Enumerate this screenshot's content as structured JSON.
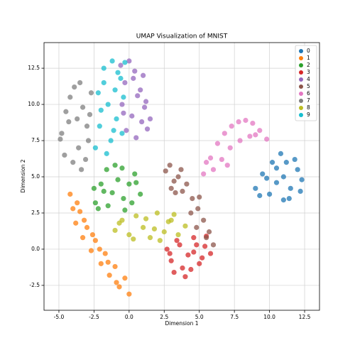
{
  "chart_data": {
    "type": "scatter",
    "title": "UMAP Visualization of MNIST",
    "x_label": "Dimension 1",
    "y_label": "Dimension 2",
    "xlim": [
      -6.06,
      13.56
    ],
    "ylim": [
      -4.22,
      14.27
    ],
    "grid": true,
    "legend_position": "upper right",
    "xticks": [
      {
        "value": -5,
        "label": "-5.0"
      },
      -2.5,
      {
        "value": 0,
        "label": "0.0"
      },
      2.5,
      {
        "value": 5,
        "label": "5.0"
      },
      7.5,
      {
        "value": 10,
        "label": "10.0"
      },
      12.5
    ],
    "yticks": [
      -2.5,
      {
        "value": 0,
        "label": "0.0"
      },
      2.5,
      {
        "value": 5,
        "label": "5.0"
      },
      7.5,
      {
        "value": 10,
        "label": "10.0"
      },
      12.5
    ],
    "series": [
      {
        "name": "0",
        "color": "#1f77b4",
        "x": [
          9.0,
          9.5,
          10,
          10.5,
          11,
          11.5,
          12,
          12.3,
          10.2,
          10.8,
          11.4,
          9.8,
          11,
          11.8,
          10.5,
          9.3,
          11.2,
          12.2
        ],
        "y": [
          4.2,
          5.2,
          3.8,
          4.6,
          5.0,
          4.2,
          5.5,
          4.8,
          6.0,
          6.6,
          3.5,
          4.9,
          3.4,
          6.2,
          5.6,
          3.7,
          6.0,
          4.0
        ]
      },
      {
        "name": "1",
        "color": "#ff7f0e",
        "x": [
          -4.2,
          -4.0,
          -3.8,
          -3.5,
          -3.3,
          -3.0,
          -2.7,
          -2.4,
          -2.0,
          -1.7,
          -1.4,
          -1.0,
          -0.7,
          -0.3,
          0.0,
          -3.7,
          -3.2,
          -2.6,
          -2.1,
          -1.5,
          -0.9
        ],
        "y": [
          3.8,
          2.8,
          1.8,
          2.6,
          0.8,
          1.5,
          -0.1,
          0.6,
          -1.0,
          -0.3,
          -1.8,
          -1.2,
          -2.6,
          -2.0,
          -3.1,
          3.2,
          2.0,
          1.0,
          0.0,
          -0.9,
          -2.3
        ]
      },
      {
        "name": "2",
        "color": "#2ca02c",
        "x": [
          -2.4,
          -2.0,
          -1.6,
          -1.2,
          -0.8,
          -0.4,
          0.0,
          0.4,
          0.8,
          -2.2,
          -1.5,
          -1.0,
          -0.5,
          0.2,
          -1.8,
          -2.5,
          0.5,
          -0.3
        ],
        "y": [
          3.2,
          4.5,
          5.5,
          3.9,
          4.8,
          3.5,
          4.5,
          5.2,
          3.8,
          2.8,
          3.0,
          5.8,
          5.6,
          3.2,
          4.0,
          4.2,
          4.6,
          2.7
        ]
      },
      {
        "name": "3",
        "color": "#d62728",
        "x": [
          2.7,
          3.0,
          3.4,
          3.8,
          4.2,
          4.6,
          5.0,
          5.4,
          5.8,
          3.2,
          4.0,
          4.8,
          5.5,
          2.9,
          4.4,
          3.6,
          5.2,
          4.6
        ],
        "y": [
          0.0,
          -0.8,
          0.6,
          -1.3,
          -0.4,
          0.8,
          -1.0,
          0.2,
          -0.3,
          -1.6,
          -1.9,
          0.3,
          0.9,
          -0.3,
          -1.4,
          0.3,
          -0.6,
          -0.2
        ]
      },
      {
        "name": "4",
        "color": "#9467bd",
        "x": [
          -0.6,
          -0.3,
          0.0,
          0.4,
          0.8,
          1.2,
          1.5,
          -0.5,
          0.2,
          0.6,
          1.0,
          -0.2,
          0.5,
          1.3,
          -0.4,
          0.9,
          0.3,
          1.1
        ],
        "y": [
          12.7,
          11.5,
          13.0,
          12.3,
          11.0,
          10.2,
          9.0,
          10.0,
          9.2,
          10.6,
          12.0,
          8.2,
          7.7,
          8.3,
          9.4,
          8.8,
          11.8,
          9.8
        ]
      },
      {
        "name": "5",
        "color": "#8c564b",
        "x": [
          2.6,
          2.9,
          3.2,
          3.5,
          3.8,
          4.1,
          4.5,
          4.9,
          5.3,
          5.7,
          6.0,
          3.0,
          3.7,
          4.4,
          5.0,
          5.5,
          3.3,
          4.8
        ],
        "y": [
          5.4,
          5.8,
          4.7,
          5.0,
          4.0,
          4.5,
          3.5,
          2.8,
          2.0,
          1.2,
          0.3,
          4.2,
          5.5,
          2.5,
          3.6,
          0.8,
          3.9,
          1.5
        ]
      },
      {
        "name": "6",
        "color": "#e377c2",
        "x": [
          5.3,
          5.8,
          6.3,
          6.8,
          7.3,
          7.8,
          8.3,
          8.8,
          9.3,
          9.8,
          6.0,
          6.6,
          7.2,
          7.9,
          8.6,
          5.5,
          7.0,
          9.0
        ],
        "y": [
          5.2,
          6.3,
          7.3,
          8.0,
          8.5,
          8.8,
          8.9,
          8.7,
          8.2,
          7.6,
          5.5,
          6.2,
          7.0,
          7.5,
          7.8,
          6.0,
          5.8,
          7.9
        ]
      },
      {
        "name": "7",
        "color": "#7f7f7f",
        "x": [
          -4.8,
          -4.5,
          -4.2,
          -3.9,
          -3.6,
          -3.3,
          -3.0,
          -2.7,
          -4.6,
          -4.0,
          -3.4,
          -2.9,
          -4.3,
          -3.7,
          -3.1,
          -4.9,
          -3.5,
          -2.8
        ],
        "y": [
          8.0,
          9.5,
          10.5,
          11.2,
          7.0,
          9.8,
          8.5,
          10.8,
          6.5,
          6.0,
          5.5,
          7.5,
          8.8,
          9.0,
          6.2,
          7.6,
          11.5,
          9.3
        ]
      },
      {
        "name": "8",
        "color": "#bcbd22",
        "x": [
          -1.0,
          -0.5,
          0.0,
          0.5,
          1.0,
          1.5,
          2.0,
          2.5,
          3.0,
          3.5,
          4.0,
          0.3,
          1.2,
          2.2,
          3.2,
          -0.7,
          1.8,
          2.8
        ],
        "y": [
          1.3,
          2.0,
          1.0,
          2.3,
          1.5,
          0.8,
          2.5,
          1.2,
          2.0,
          1.0,
          1.6,
          0.7,
          2.1,
          0.6,
          2.4,
          1.8,
          1.4,
          1.9
        ]
      },
      {
        "name": "9",
        "color": "#17becf",
        "x": [
          -2.4,
          -2.1,
          -1.8,
          -1.5,
          -1.2,
          -0.9,
          -0.6,
          -0.3,
          -2.2,
          -1.6,
          -1.0,
          -0.5,
          -2.0,
          -1.3,
          -0.8,
          -1.8,
          -1.1,
          -0.4
        ],
        "y": [
          7.0,
          8.5,
          12.5,
          10.0,
          13.0,
          9.0,
          11.8,
          12.9,
          10.8,
          6.6,
          11.0,
          8.0,
          9.6,
          7.5,
          12.2,
          11.5,
          8.2,
          10.5
        ]
      }
    ]
  }
}
